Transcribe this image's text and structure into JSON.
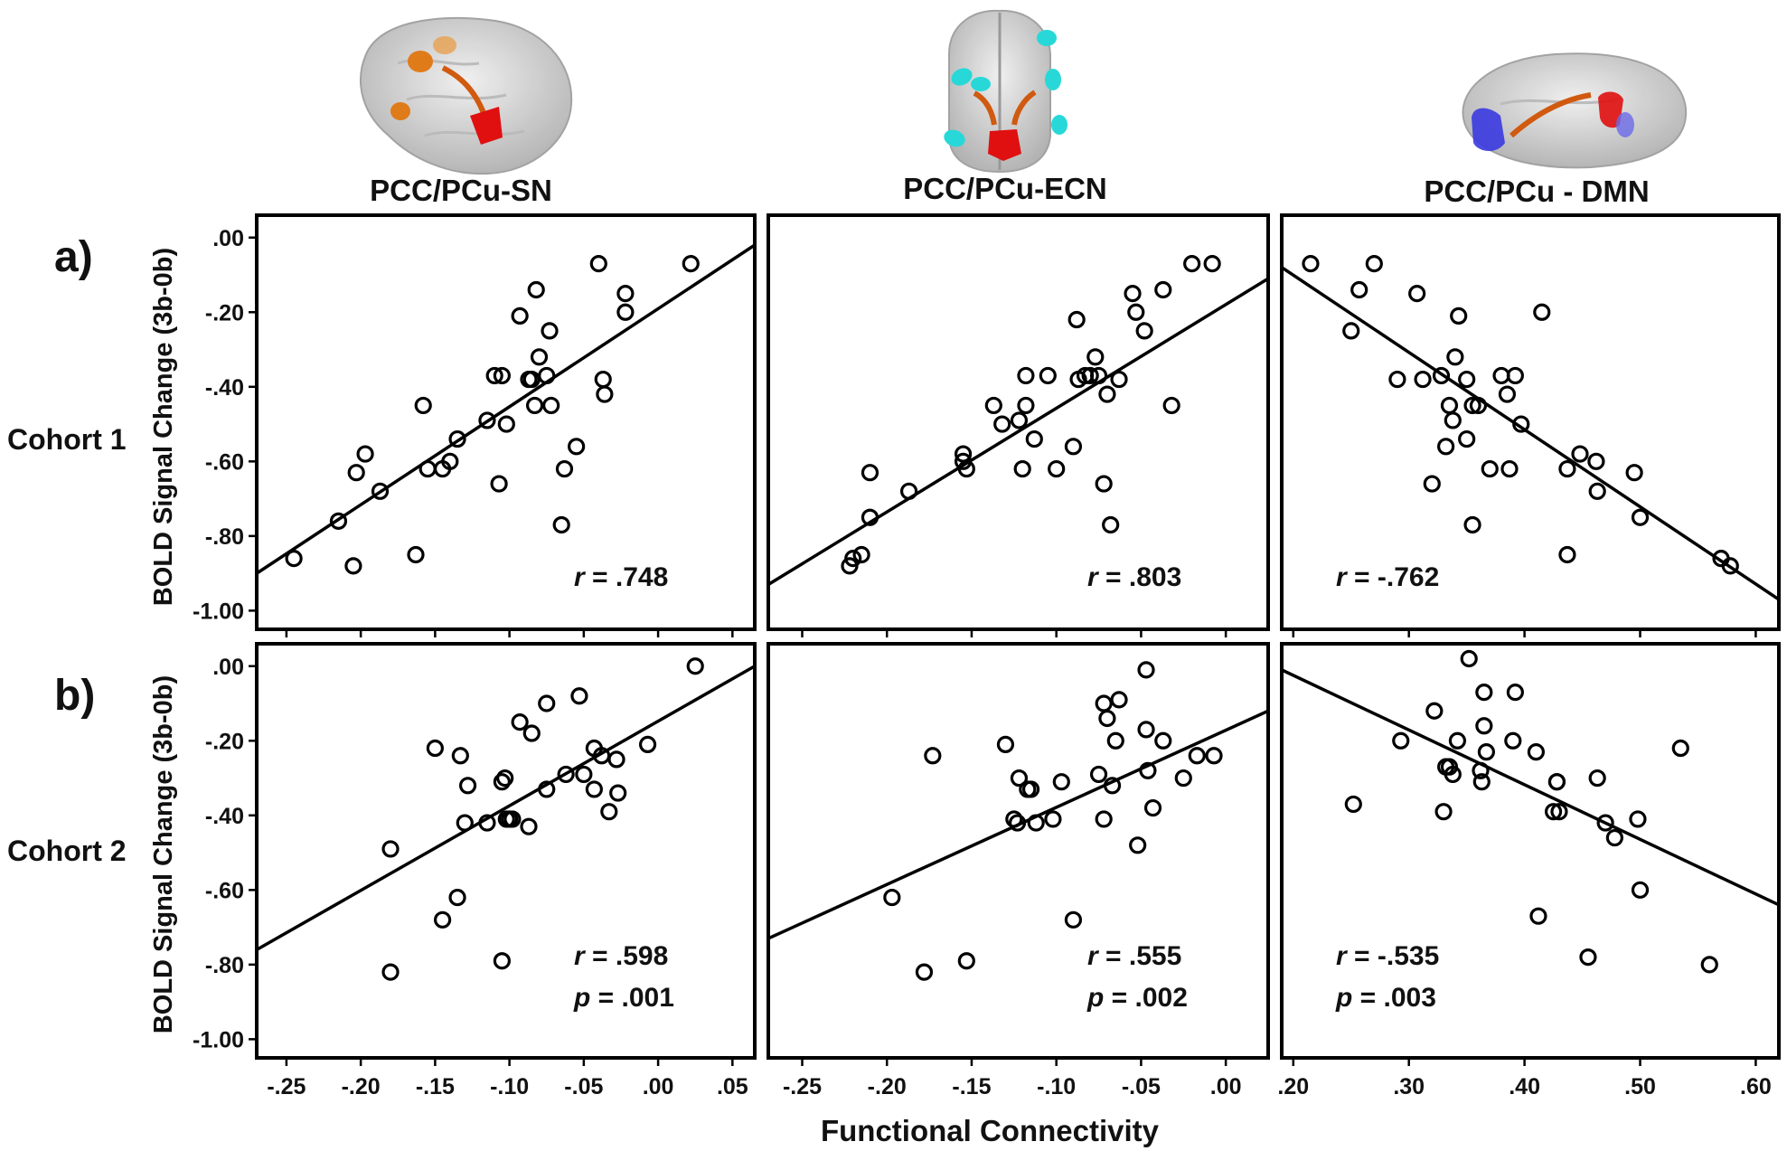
{
  "figure": {
    "row_labels": [
      "a)",
      "b)"
    ],
    "cohort_labels": [
      "Cohort 1",
      "Cohort 2"
    ],
    "ylabel": "BOLD Signal Change (3b-0b)",
    "xlabel": "Functional Connectivity",
    "column_titles": [
      "PCC/PCu-SN",
      "PCC/PCu-ECN",
      "PCC/PCu - DMN"
    ]
  },
  "colors": {
    "salience": "#e07b1a",
    "executive": "#28d8d8",
    "default_mode": "#3a3ae0",
    "seed": "#e01010",
    "link": "#d05a10",
    "brain": "#c8c8c8"
  },
  "chart_data": [
    {
      "type": "scatter",
      "title": "PCC/PCu-SN",
      "row": "a)",
      "cohort": "Cohort 1",
      "xlim": [
        -0.27,
        0.065
      ],
      "ylim": [
        -1.05,
        0.06
      ],
      "xticks": [
        -0.25,
        -0.2,
        -0.15,
        -0.1,
        -0.05,
        0.0,
        0.05
      ],
      "xtick_labels": [
        "-.25",
        "-.20",
        "-.15",
        "-.10",
        "-.05",
        ".00",
        ".05"
      ],
      "yticks": [
        0.0,
        -0.2,
        -0.4,
        -0.6,
        -0.8,
        -1.0
      ],
      "ytick_labels": [
        ".00",
        "-.20",
        "-.40",
        "-.60",
        "-.80",
        "-1.00"
      ],
      "r": "r = .748",
      "p": "",
      "fit_line": [
        [
          -0.27,
          -0.9
        ],
        [
          0.065,
          -0.02
        ]
      ],
      "points": [
        [
          -0.245,
          -0.86
        ],
        [
          -0.215,
          -0.76
        ],
        [
          -0.205,
          -0.88
        ],
        [
          -0.203,
          -0.63
        ],
        [
          -0.197,
          -0.58
        ],
        [
          -0.187,
          -0.68
        ],
        [
          -0.163,
          -0.85
        ],
        [
          -0.158,
          -0.45
        ],
        [
          -0.155,
          -0.62
        ],
        [
          -0.145,
          -0.62
        ],
        [
          -0.14,
          -0.6
        ],
        [
          -0.135,
          -0.54
        ],
        [
          -0.115,
          -0.49
        ],
        [
          -0.11,
          -0.37
        ],
        [
          -0.105,
          -0.37
        ],
        [
          -0.107,
          -0.66
        ],
        [
          -0.102,
          -0.5
        ],
        [
          -0.093,
          -0.21
        ],
        [
          -0.087,
          -0.38
        ],
        [
          -0.085,
          -0.38
        ],
        [
          -0.083,
          -0.45
        ],
        [
          -0.082,
          -0.14
        ],
        [
          -0.08,
          -0.32
        ],
        [
          -0.075,
          -0.37
        ],
        [
          -0.073,
          -0.25
        ],
        [
          -0.072,
          -0.45
        ],
        [
          -0.065,
          -0.77
        ],
        [
          -0.063,
          -0.62
        ],
        [
          -0.055,
          -0.56
        ],
        [
          -0.04,
          -0.07
        ],
        [
          -0.037,
          -0.38
        ],
        [
          -0.036,
          -0.42
        ],
        [
          -0.022,
          -0.15
        ],
        [
          -0.022,
          -0.2
        ],
        [
          0.022,
          -0.07
        ]
      ]
    },
    {
      "type": "scatter",
      "title": "PCC/PCu-ECN",
      "row": "a)",
      "cohort": "Cohort 1",
      "xlim": [
        -0.27,
        0.025
      ],
      "ylim": [
        -1.05,
        0.06
      ],
      "xticks": [
        -0.25,
        -0.2,
        -0.15,
        -0.1,
        -0.05,
        0.0
      ],
      "xtick_labels": [
        "-.25",
        "-.20",
        "-.15",
        "-.10",
        "-.05",
        ".00"
      ],
      "yticks": [
        0.0,
        -0.2,
        -0.4,
        -0.6,
        -0.8,
        -1.0
      ],
      "ytick_labels": [
        ".00",
        "-.20",
        "-.40",
        "-.60",
        "-.80",
        "-1.00"
      ],
      "r": "r = .803",
      "p": "",
      "fit_line": [
        [
          -0.27,
          -0.93
        ],
        [
          0.025,
          -0.11
        ]
      ],
      "points": [
        [
          -0.222,
          -0.88
        ],
        [
          -0.22,
          -0.86
        ],
        [
          -0.215,
          -0.85
        ],
        [
          -0.21,
          -0.63
        ],
        [
          -0.21,
          -0.75
        ],
        [
          -0.187,
          -0.68
        ],
        [
          -0.155,
          -0.58
        ],
        [
          -0.155,
          -0.6
        ],
        [
          -0.153,
          -0.62
        ],
        [
          -0.137,
          -0.45
        ],
        [
          -0.132,
          -0.5
        ],
        [
          -0.122,
          -0.49
        ],
        [
          -0.12,
          -0.62
        ],
        [
          -0.118,
          -0.45
        ],
        [
          -0.118,
          -0.37
        ],
        [
          -0.113,
          -0.54
        ],
        [
          -0.105,
          -0.37
        ],
        [
          -0.1,
          -0.62
        ],
        [
          -0.09,
          -0.56
        ],
        [
          -0.088,
          -0.22
        ],
        [
          -0.087,
          -0.38
        ],
        [
          -0.083,
          -0.37
        ],
        [
          -0.08,
          -0.37
        ],
        [
          -0.077,
          -0.32
        ],
        [
          -0.075,
          -0.37
        ],
        [
          -0.072,
          -0.66
        ],
        [
          -0.07,
          -0.42
        ],
        [
          -0.068,
          -0.77
        ],
        [
          -0.063,
          -0.38
        ],
        [
          -0.055,
          -0.15
        ],
        [
          -0.053,
          -0.2
        ],
        [
          -0.048,
          -0.25
        ],
        [
          -0.037,
          -0.14
        ],
        [
          -0.032,
          -0.45
        ],
        [
          -0.02,
          -0.07
        ],
        [
          -0.008,
          -0.07
        ]
      ]
    },
    {
      "type": "scatter",
      "title": "PCC/PCu - DMN",
      "row": "a)",
      "cohort": "Cohort 1",
      "xlim": [
        0.19,
        0.62
      ],
      "ylim": [
        -1.05,
        0.06
      ],
      "xticks": [
        0.2,
        0.3,
        0.4,
        0.5,
        0.6
      ],
      "xtick_labels": [
        ".20",
        ".30",
        ".40",
        ".50",
        ".60"
      ],
      "yticks": [
        0.0,
        -0.2,
        -0.4,
        -0.6,
        -0.8,
        -1.0
      ],
      "ytick_labels": [
        ".00",
        "-.20",
        "-.40",
        "-.60",
        "-.80",
        "-1.00"
      ],
      "r": "r = -.762",
      "p": "",
      "fit_line": [
        [
          0.19,
          -0.08
        ],
        [
          0.62,
          -0.97
        ]
      ],
      "points": [
        [
          0.215,
          -0.07
        ],
        [
          0.25,
          -0.25
        ],
        [
          0.257,
          -0.14
        ],
        [
          0.27,
          -0.07
        ],
        [
          0.29,
          -0.38
        ],
        [
          0.307,
          -0.15
        ],
        [
          0.312,
          -0.38
        ],
        [
          0.32,
          -0.66
        ],
        [
          0.328,
          -0.37
        ],
        [
          0.332,
          -0.56
        ],
        [
          0.335,
          -0.45
        ],
        [
          0.338,
          -0.49
        ],
        [
          0.34,
          -0.32
        ],
        [
          0.343,
          -0.21
        ],
        [
          0.35,
          -0.38
        ],
        [
          0.35,
          -0.54
        ],
        [
          0.355,
          -0.77
        ],
        [
          0.355,
          -0.45
        ],
        [
          0.36,
          -0.45
        ],
        [
          0.37,
          -0.62
        ],
        [
          0.38,
          -0.37
        ],
        [
          0.385,
          -0.42
        ],
        [
          0.387,
          -0.62
        ],
        [
          0.392,
          -0.37
        ],
        [
          0.397,
          -0.5
        ],
        [
          0.415,
          -0.2
        ],
        [
          0.437,
          -0.62
        ],
        [
          0.437,
          -0.85
        ],
        [
          0.448,
          -0.58
        ],
        [
          0.462,
          -0.6
        ],
        [
          0.463,
          -0.68
        ],
        [
          0.495,
          -0.63
        ],
        [
          0.5,
          -0.75
        ],
        [
          0.57,
          -0.86
        ],
        [
          0.578,
          -0.88
        ]
      ]
    },
    {
      "type": "scatter",
      "title": "PCC/PCu-SN",
      "row": "b)",
      "cohort": "Cohort 2",
      "xlim": [
        -0.27,
        0.065
      ],
      "ylim": [
        -1.05,
        0.06
      ],
      "xticks": [
        -0.25,
        -0.2,
        -0.15,
        -0.1,
        -0.05,
        0.0,
        0.05
      ],
      "xtick_labels": [
        "-.25",
        "-.20",
        "-.15",
        "-.10",
        "-.05",
        ".00",
        ".05"
      ],
      "yticks": [
        0.0,
        -0.2,
        -0.4,
        -0.6,
        -0.8,
        -1.0
      ],
      "ytick_labels": [
        ".00",
        "-.20",
        "-.40",
        "-.60",
        "-.80",
        "-1.00"
      ],
      "r": "r = .598",
      "p": "p = .001",
      "fit_line": [
        [
          -0.27,
          -0.76
        ],
        [
          0.065,
          0.0
        ]
      ],
      "points": [
        [
          -0.18,
          -0.49
        ],
        [
          -0.18,
          -0.82
        ],
        [
          -0.15,
          -0.22
        ],
        [
          -0.145,
          -0.68
        ],
        [
          -0.135,
          -0.62
        ],
        [
          -0.133,
          -0.24
        ],
        [
          -0.13,
          -0.42
        ],
        [
          -0.128,
          -0.32
        ],
        [
          -0.115,
          -0.42
        ],
        [
          -0.105,
          -0.31
        ],
        [
          -0.105,
          -0.79
        ],
        [
          -0.103,
          -0.3
        ],
        [
          -0.102,
          -0.41
        ],
        [
          -0.1,
          -0.41
        ],
        [
          -0.098,
          -0.41
        ],
        [
          -0.093,
          -0.15
        ],
        [
          -0.087,
          -0.43
        ],
        [
          -0.085,
          -0.18
        ],
        [
          -0.075,
          -0.1
        ],
        [
          -0.075,
          -0.33
        ],
        [
          -0.062,
          -0.29
        ],
        [
          -0.053,
          -0.08
        ],
        [
          -0.05,
          -0.29
        ],
        [
          -0.043,
          -0.33
        ],
        [
          -0.043,
          -0.22
        ],
        [
          -0.038,
          -0.24
        ],
        [
          -0.033,
          -0.39
        ],
        [
          -0.028,
          -0.25
        ],
        [
          -0.027,
          -0.34
        ],
        [
          -0.007,
          -0.21
        ],
        [
          0.025,
          0.0
        ]
      ]
    },
    {
      "type": "scatter",
      "title": "PCC/PCu-ECN",
      "row": "b)",
      "cohort": "Cohort 2",
      "xlim": [
        -0.27,
        0.025
      ],
      "ylim": [
        -1.05,
        0.06
      ],
      "xticks": [
        -0.25,
        -0.2,
        -0.15,
        -0.1,
        -0.05,
        0.0
      ],
      "xtick_labels": [
        "-.25",
        "-.20",
        "-.15",
        "-.10",
        "-.05",
        ".00"
      ],
      "yticks": [
        0.0,
        -0.2,
        -0.4,
        -0.6,
        -0.8,
        -1.0
      ],
      "ytick_labels": [
        ".00",
        "-.20",
        "-.40",
        "-.60",
        "-.80",
        "-1.00"
      ],
      "r": "r = .555",
      "p": "p = .002",
      "fit_line": [
        [
          -0.27,
          -0.73
        ],
        [
          0.025,
          -0.12
        ]
      ],
      "points": [
        [
          -0.197,
          -0.62
        ],
        [
          -0.178,
          -0.82
        ],
        [
          -0.173,
          -0.24
        ],
        [
          -0.153,
          -0.79
        ],
        [
          -0.13,
          -0.21
        ],
        [
          -0.125,
          -0.41
        ],
        [
          -0.123,
          -0.42
        ],
        [
          -0.122,
          -0.3
        ],
        [
          -0.117,
          -0.33
        ],
        [
          -0.115,
          -0.33
        ],
        [
          -0.112,
          -0.42
        ],
        [
          -0.102,
          -0.41
        ],
        [
          -0.097,
          -0.31
        ],
        [
          -0.09,
          -0.68
        ],
        [
          -0.075,
          -0.29
        ],
        [
          -0.072,
          -0.41
        ],
        [
          -0.072,
          -0.1
        ],
        [
          -0.07,
          -0.14
        ],
        [
          -0.067,
          -0.32
        ],
        [
          -0.065,
          -0.2
        ],
        [
          -0.063,
          -0.09
        ],
        [
          -0.052,
          -0.48
        ],
        [
          -0.047,
          -0.01
        ],
        [
          -0.047,
          -0.17
        ],
        [
          -0.046,
          -0.28
        ],
        [
          -0.043,
          -0.38
        ],
        [
          -0.037,
          -0.2
        ],
        [
          -0.025,
          -0.3
        ],
        [
          -0.017,
          -0.24
        ],
        [
          -0.007,
          -0.24
        ]
      ]
    },
    {
      "type": "scatter",
      "title": "PCC/PCu - DMN",
      "row": "b)",
      "cohort": "Cohort 2",
      "xlim": [
        0.19,
        0.62
      ],
      "ylim": [
        -1.05,
        0.06
      ],
      "xticks": [
        0.2,
        0.3,
        0.4,
        0.5,
        0.6
      ],
      "xtick_labels": [
        ".20",
        ".30",
        ".40",
        ".50",
        ".60"
      ],
      "yticks": [
        0.0,
        -0.2,
        -0.4,
        -0.6,
        -0.8,
        -1.0
      ],
      "ytick_labels": [
        ".00",
        "-.20",
        "-.40",
        "-.60",
        "-.80",
        "-1.00"
      ],
      "r": "r = -.535",
      "p": "p = .003",
      "fit_line": [
        [
          0.19,
          -0.01
        ],
        [
          0.62,
          -0.64
        ]
      ],
      "points": [
        [
          0.252,
          -0.37
        ],
        [
          0.293,
          -0.2
        ],
        [
          0.322,
          -0.12
        ],
        [
          0.33,
          -0.39
        ],
        [
          0.332,
          -0.27
        ],
        [
          0.335,
          -0.27
        ],
        [
          0.338,
          -0.29
        ],
        [
          0.342,
          -0.2
        ],
        [
          0.352,
          0.02
        ],
        [
          0.362,
          -0.28
        ],
        [
          0.363,
          -0.31
        ],
        [
          0.365,
          -0.07
        ],
        [
          0.365,
          -0.16
        ],
        [
          0.367,
          -0.23
        ],
        [
          0.39,
          -0.2
        ],
        [
          0.392,
          -0.07
        ],
        [
          0.41,
          -0.23
        ],
        [
          0.412,
          -0.67
        ],
        [
          0.425,
          -0.39
        ],
        [
          0.428,
          -0.31
        ],
        [
          0.428,
          -0.31
        ],
        [
          0.43,
          -0.39
        ],
        [
          0.455,
          -0.78
        ],
        [
          0.463,
          -0.3
        ],
        [
          0.47,
          -0.42
        ],
        [
          0.478,
          -0.46
        ],
        [
          0.498,
          -0.41
        ],
        [
          0.5,
          -0.6
        ],
        [
          0.535,
          -0.22
        ],
        [
          0.56,
          -0.8
        ]
      ]
    }
  ]
}
